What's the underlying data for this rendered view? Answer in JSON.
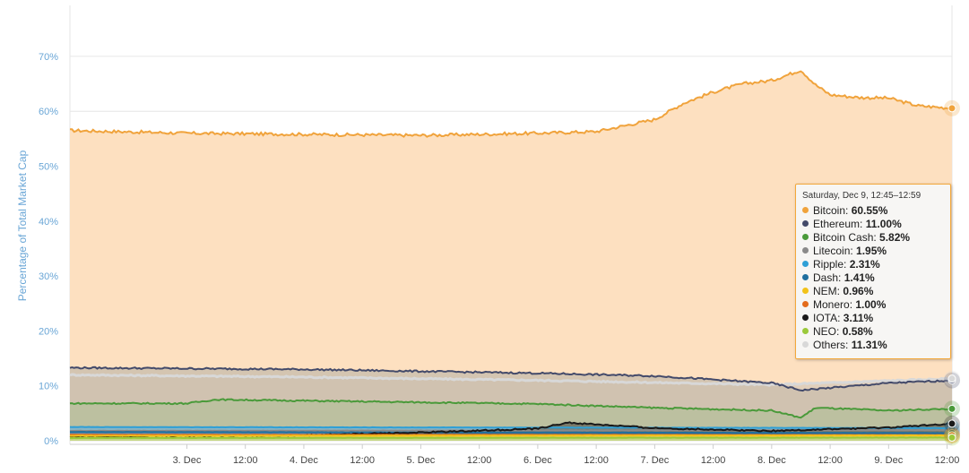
{
  "chart_data": {
    "type": "area",
    "ylabel": "Percentage of Total Market Cap",
    "yticks": [
      "0%",
      "10%",
      "20%",
      "30%",
      "40%",
      "50%",
      "60%",
      "70%"
    ],
    "ylim": [
      0,
      80
    ],
    "x_range": [
      "Dec 2 00:00",
      "Dec 9 13:00"
    ],
    "xticks": [
      "3. Dec",
      "12:00",
      "4. Dec",
      "12:00",
      "5. Dec",
      "12:00",
      "6. Dec",
      "12:00",
      "7. Dec",
      "12:00",
      "8. Dec",
      "12:00",
      "9. Dec",
      "12:00"
    ],
    "grid": true,
    "series": [
      {
        "name": "Bitcoin",
        "color": "#f0a33c",
        "fill": "#fde0c0",
        "x": [
          "Dec 2 00:00",
          "Dec 3 00:00",
          "Dec 4 00:00",
          "Dec 5 00:00",
          "Dec 6 00:00",
          "Dec 6 12:00",
          "Dec 7 00:00",
          "Dec 7 06:00",
          "Dec 7 12:00",
          "Dec 7 18:00",
          "Dec 8 00:00",
          "Dec 8 06:00",
          "Dec 8 09:00",
          "Dec 8 12:00",
          "Dec 8 18:00",
          "Dec 9 00:00",
          "Dec 9 06:00",
          "Dec 9 13:00"
        ],
        "y": [
          56.5,
          56.0,
          55.8,
          55.6,
          56.0,
          56.3,
          58.5,
          61.5,
          63.5,
          65.0,
          65.6,
          67.5,
          64.8,
          63.0,
          62.5,
          62.4,
          61.0,
          60.55
        ]
      },
      {
        "name": "Ethereum",
        "color": "#434a6a",
        "x": [
          "Dec 2 00:00",
          "Dec 4 00:00",
          "Dec 6 00:00",
          "Dec 7 00:00",
          "Dec 8 00:00",
          "Dec 8 06:00",
          "Dec 9 00:00",
          "Dec 9 13:00"
        ],
        "y": [
          13.3,
          13.0,
          12.3,
          11.8,
          10.5,
          9.2,
          10.5,
          11.0
        ]
      },
      {
        "name": "Bitcoin Cash",
        "color": "#4a9a3a",
        "x": [
          "Dec 2 00:00",
          "Dec 3 00:00",
          "Dec 3 06:00",
          "Dec 5 00:00",
          "Dec 6 00:00",
          "Dec 7 00:00",
          "Dec 8 00:00",
          "Dec 8 06:00",
          "Dec 8 09:00",
          "Dec 9 00:00",
          "Dec 9 13:00"
        ],
        "y": [
          6.8,
          6.8,
          7.5,
          7.0,
          6.7,
          6.0,
          5.5,
          4.2,
          6.0,
          5.5,
          5.82
        ]
      },
      {
        "name": "Litecoin",
        "color": "#8a8a8a",
        "x": [
          "Dec 2 00:00",
          "Dec 9 13:00"
        ],
        "y": [
          1.8,
          1.95
        ]
      },
      {
        "name": "Ripple",
        "color": "#2e9fd6",
        "x": [
          "Dec 2 00:00",
          "Dec 9 13:00"
        ],
        "y": [
          2.5,
          2.31
        ]
      },
      {
        "name": "Dash",
        "color": "#1f6f9f",
        "x": [
          "Dec 2 00:00",
          "Dec 9 13:00"
        ],
        "y": [
          1.6,
          1.41
        ]
      },
      {
        "name": "NEM",
        "color": "#f2c21a",
        "x": [
          "Dec 2 00:00",
          "Dec 9 13:00"
        ],
        "y": [
          0.9,
          0.96
        ]
      },
      {
        "name": "Monero",
        "color": "#e36b1c",
        "x": [
          "Dec 2 00:00",
          "Dec 9 13:00"
        ],
        "y": [
          1.1,
          1.0
        ]
      },
      {
        "name": "IOTA",
        "color": "#1a1a1a",
        "x": [
          "Dec 2 00:00",
          "Dec 4 00:00",
          "Dec 5 00:00",
          "Dec 6 00:00",
          "Dec 6 06:00",
          "Dec 7 00:00",
          "Dec 8 00:00",
          "Dec 9 00:00",
          "Dec 9 13:00"
        ],
        "y": [
          0.8,
          1.0,
          1.5,
          2.2,
          3.3,
          2.3,
          1.8,
          2.4,
          3.11
        ]
      },
      {
        "name": "NEO",
        "color": "#9ac93a",
        "x": [
          "Dec 2 00:00",
          "Dec 9 13:00"
        ],
        "y": [
          0.5,
          0.58
        ]
      },
      {
        "name": "Others",
        "color": "#d8d8d8",
        "x": [
          "Dec 2 00:00",
          "Dec 4 00:00",
          "Dec 6 00:00",
          "Dec 8 00:00",
          "Dec 9 13:00"
        ],
        "y": [
          12.0,
          11.6,
          11.0,
          10.2,
          11.31
        ]
      }
    ]
  },
  "tooltip": {
    "title": "Saturday, Dec 9, 12:45–12:59",
    "rows": [
      {
        "name": "Bitcoin",
        "value": "60.55%",
        "color": "#f0a33c"
      },
      {
        "name": "Ethereum",
        "value": "11.00%",
        "color": "#434a6a"
      },
      {
        "name": "Bitcoin Cash",
        "value": "5.82%",
        "color": "#4a9a3a"
      },
      {
        "name": "Litecoin",
        "value": "1.95%",
        "color": "#8a8a8a"
      },
      {
        "name": "Ripple",
        "value": "2.31%",
        "color": "#2e9fd6"
      },
      {
        "name": "Dash",
        "value": "1.41%",
        "color": "#1f6f9f"
      },
      {
        "name": "NEM",
        "value": "0.96%",
        "color": "#f2c21a"
      },
      {
        "name": "Monero",
        "value": "1.00%",
        "color": "#e36b1c"
      },
      {
        "name": "IOTA",
        "value": "3.11%",
        "color": "#1a1a1a"
      },
      {
        "name": "NEO",
        "value": "0.58%",
        "color": "#9ac93a"
      },
      {
        "name": "Others",
        "value": "11.31%",
        "color": "#d8d8d8"
      }
    ]
  }
}
